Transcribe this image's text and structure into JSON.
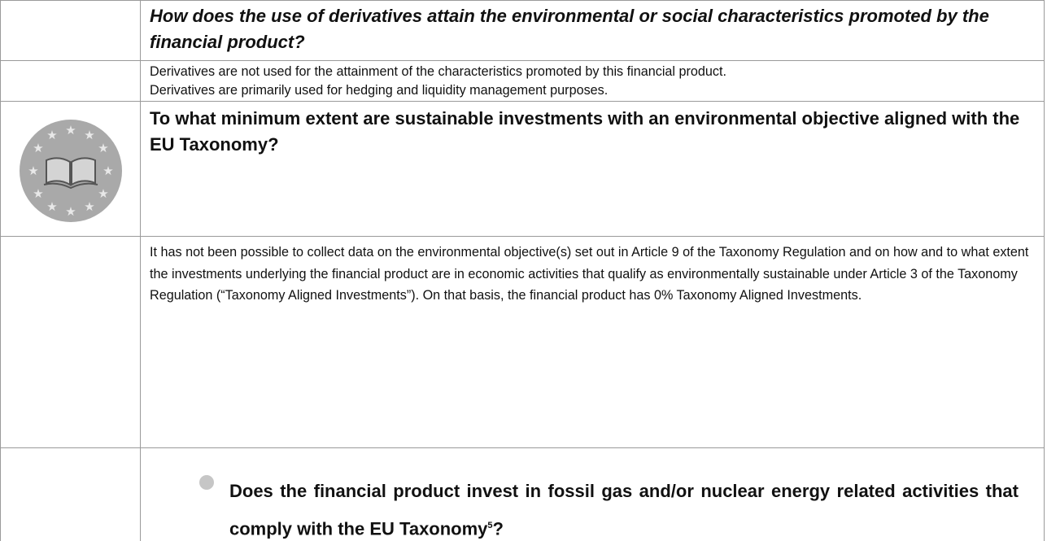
{
  "sections": [
    {
      "heading": "How does the use of derivatives attain the environmental or social characteristics promoted by the financial product?",
      "lines": [
        "Derivatives are not used for the attainment of the characteristics promoted by this financial product.",
        "Derivatives are primarily used for hedging and liquidity management purposes."
      ]
    },
    {
      "heading": "To what minimum extent are sustainable investments with an environmental objective aligned with the EU Taxonomy?",
      "body": "It has not been possible to collect data on the environmental objective(s) set out in Article 9 of the Taxonomy Regulation and on how and to what extent the investments underlying the financial product are in economic activities that qualify as environmentally sustainable under Article 3 of the Taxonomy Regulation (“Taxonomy Aligned Investments”). On that basis, the financial product has 0% Taxonomy Aligned Investments."
    },
    {
      "question": "Does the financial product invest in fossil gas and/or nuclear energy related activities that comply with the EU Taxonomy",
      "footnote": "5",
      "end": "?"
    }
  ]
}
